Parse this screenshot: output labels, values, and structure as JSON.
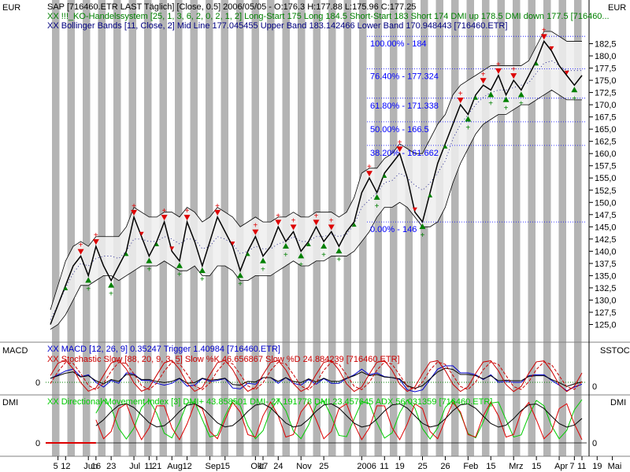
{
  "chart_data": {
    "type": "line",
    "unit_label": "EUR",
    "header_lines": [
      {
        "text": "SAP [716460.ETR LAST Täglich] [Close, 0.5] 2006/05/05 - O:176.3 H:177.88 L:175.96 C:177.25",
        "color": "#000000"
      },
      {
        "text": "XX !!!_KO-Handelssystem [25, 1, 3, 6, 2, 0, 2, 1, 2] Long-Start 175 Long 184.5 Short-Start 183 Short 174 DMI up 178.5 DMI down 177.5 [716460...",
        "color": "#008000"
      },
      {
        "text": "XX Bollinger Bands [11, Close, 2] Mid Line 177.045455 Upper Band 183.142466 Lower Band 170.948443 [716460.ETR]",
        "color": "#000080"
      }
    ],
    "price_axis": {
      "min": 122.5,
      "max": 185,
      "ticks": [
        "182,5",
        "180,0",
        "177,5",
        "175,0",
        "172,5",
        "170,0",
        "167,5",
        "165,0",
        "162,5",
        "160,0",
        "157,5",
        "155,0",
        "152,5",
        "150,0",
        "147,5",
        "145,0",
        "142,5",
        "140,0",
        "137,5",
        "135,0",
        "132,5",
        "130,0",
        "127,5",
        "125,0"
      ]
    },
    "price_series": [
      125,
      129,
      133,
      137,
      139,
      135,
      141,
      137,
      134,
      137,
      140,
      147,
      143,
      139,
      142,
      146,
      140,
      138,
      146,
      142,
      137,
      142,
      147,
      144,
      141,
      136,
      140,
      143,
      139,
      141,
      145,
      142,
      144,
      140,
      142,
      145,
      142,
      144,
      141,
      144,
      146,
      152,
      155,
      152,
      156,
      158,
      160,
      155,
      148,
      146,
      152,
      158,
      162,
      166,
      170,
      168,
      172,
      174,
      173,
      176,
      172,
      175,
      173,
      176,
      179,
      183,
      181,
      178,
      176,
      174,
      176
    ],
    "upper_band": [
      128,
      133,
      138,
      141,
      142,
      141,
      143,
      143,
      143,
      143,
      145,
      149,
      148,
      147,
      147,
      148,
      148,
      147,
      149,
      148,
      146,
      147,
      149,
      148,
      147,
      145,
      146,
      147,
      146,
      146,
      147,
      147,
      148,
      147,
      147,
      148,
      148,
      148,
      147,
      148,
      151,
      156,
      157,
      157,
      159,
      160,
      162,
      161,
      160,
      160,
      163,
      166,
      168,
      172,
      174,
      175,
      176,
      177,
      178,
      178,
      178,
      178,
      178,
      179,
      182,
      185,
      185,
      184,
      183,
      183,
      183
    ],
    "lower_band": [
      124,
      125,
      127,
      130,
      133,
      133,
      134,
      135,
      135,
      134,
      135,
      136,
      137,
      137,
      137,
      138,
      137,
      136,
      136,
      137,
      135,
      135,
      137,
      137,
      136,
      134,
      134,
      135,
      135,
      135,
      136,
      137,
      138,
      137,
      137,
      138,
      138,
      139,
      139,
      139,
      140,
      142,
      144,
      147,
      149,
      149,
      150,
      149,
      147,
      145,
      145,
      146,
      149,
      154,
      158,
      161,
      164,
      166,
      167,
      168,
      168,
      169,
      170,
      170,
      171,
      172,
      173,
      172,
      171,
      171,
      171
    ],
    "fib_levels": [
      {
        "label": "100.00% - 184",
        "value": 184
      },
      {
        "label": "76.40% - 177.324",
        "value": 177.324
      },
      {
        "label": "61.80% - 171.338",
        "value": 171.338
      },
      {
        "label": "50.00% - 166.5",
        "value": 166.5
      },
      {
        "label": "38.20% - 161.662",
        "value": 161.662
      },
      {
        "label": "0.00% - 146",
        "value": 146
      }
    ],
    "panels": [
      {
        "left_label": "MACD",
        "right_label": "SSTOC",
        "zero_label": "0",
        "lines": [
          {
            "text": "XX MACD [12, 26, 9] 0.35247 Trigger 1.40984 [716460.ETR]",
            "color": "#0000cc"
          },
          {
            "text": "XX Stochastic Slow [88, 20, 9, 3, 5] Slow %K 46.656867 Slow %D 24.884239 [716460.ETR]",
            "color": "#cc0000"
          }
        ]
      },
      {
        "left_label": "DMI",
        "right_label": "DMI",
        "zero_label": "0",
        "lines": [
          {
            "text": "XX Directional Movement Index [3] DMI+ 43.858501 DMI- 27.191778 DMI 23.457645 ADX 56.031359 [716460.ETR]",
            "color": "#00cc00"
          }
        ]
      }
    ],
    "x_ticks": [
      "5",
      "12",
      "Jun",
      "16",
      "23",
      "Jul",
      "11",
      "21",
      "Aug",
      "12",
      "Sep",
      "15",
      "Okt",
      "17",
      "24",
      "Nov",
      "25",
      "2006",
      "11",
      "19",
      "25",
      "26",
      "Feb",
      "15",
      "Mrz",
      "15",
      "Apr",
      "7",
      "11",
      "19",
      "Mai"
    ],
    "x_tick_index": [
      1,
      2,
      5,
      6,
      8,
      11,
      13,
      14,
      16,
      18,
      21,
      23,
      27,
      28,
      30,
      33,
      36,
      41,
      44,
      46,
      49,
      52,
      55,
      58,
      61,
      64,
      67,
      69,
      70,
      72,
      74
    ]
  }
}
